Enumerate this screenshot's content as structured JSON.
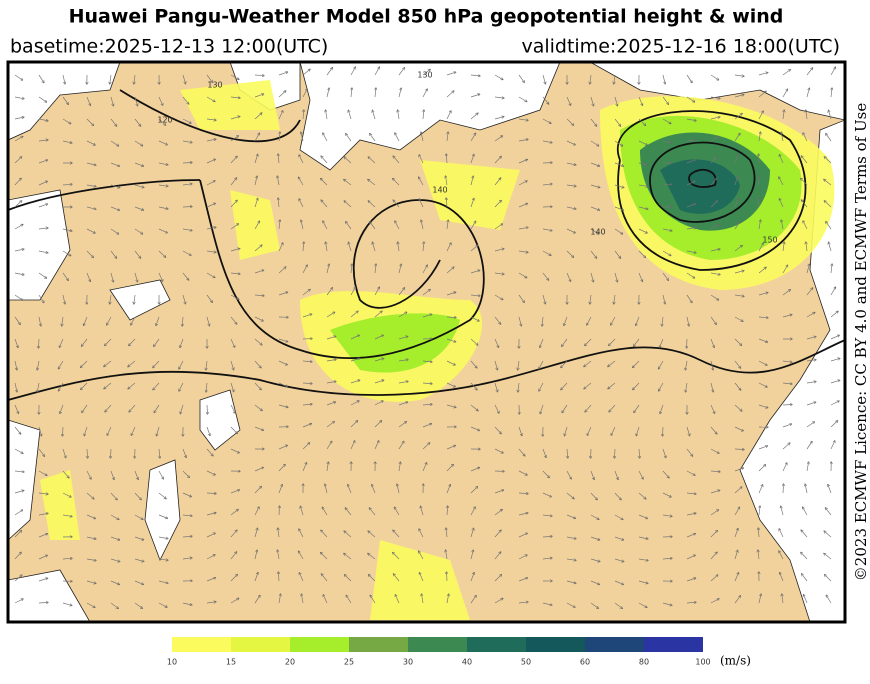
{
  "header": {
    "title": "Huawei Pangu-Weather Model 850 hPa geopotential height & wind",
    "basetime": "basetime:2025-12-13 12:00(UTC)",
    "validtime": "validtime:2025-12-16 18:00(UTC)"
  },
  "license": "©2023 ECMWF Licence: CC BY 4.0 and ECMWF Terms of Use",
  "map": {
    "contour_labels": [
      "120",
      "130",
      "140",
      "130",
      "140",
      "150"
    ]
  },
  "colorbar": {
    "ticks": [
      10,
      15,
      20,
      25,
      30,
      40,
      50,
      60,
      80,
      100
    ],
    "colors": [
      "#fbfb5e",
      "#e4f542",
      "#a6ee2c",
      "#76a844",
      "#3c8a52",
      "#1f6c5a",
      "#15585c",
      "#1e4678",
      "#2a34a2"
    ],
    "unit": "(m/s)"
  }
}
